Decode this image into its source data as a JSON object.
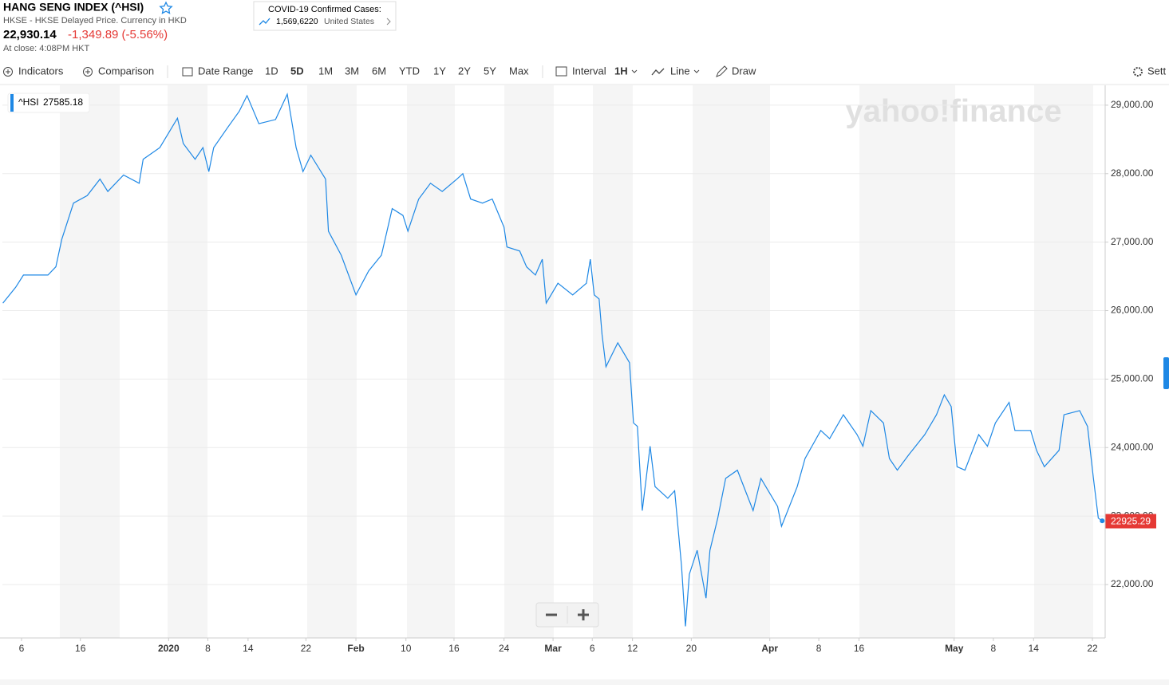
{
  "header": {
    "title": "HANG SENG INDEX (^HSI)",
    "exchange": "HKSE - HKSE Delayed Price. Currency in HKD",
    "price": "22,930.14",
    "change": "-1,349.89 (-5.56%)",
    "close_time": "At close: 4:08PM HKT"
  },
  "covid": {
    "label": "COVID-19 Confirmed Cases:",
    "count": "1,569,6220",
    "region": "United States"
  },
  "toolbar": {
    "indicators": "Indicators",
    "comparison": "Comparison",
    "date_range": "Date Range",
    "ranges": [
      "1D",
      "5D",
      "1M",
      "3M",
      "6M",
      "YTD",
      "1Y",
      "2Y",
      "5Y",
      "Max"
    ],
    "active_range": 1,
    "interval_label": "Interval",
    "interval": "1H",
    "chart_style": "Line",
    "draw": "Draw",
    "settings": "Sett"
  },
  "chart_data": {
    "type": "line",
    "watermark": "yahoo!finance",
    "x": [
      -1.9,
      -0.6,
      0.2,
      2.7,
      3.5,
      4.1,
      5.3,
      6.7,
      8.0,
      8.8,
      10.4,
      12.0,
      12.4,
      14.1,
      15.9,
      16.5,
      17.7,
      18.5,
      19.1,
      19.6,
      21.0,
      22.2,
      23.0,
      24.2,
      25.9,
      27.1,
      28.0,
      28.7,
      29.5,
      31.0,
      31.3,
      32.6,
      34.1,
      35.4,
      36.7,
      37.8,
      38.9,
      39.4,
      40.5,
      41.7,
      42.9,
      44.4,
      45.0,
      45.8,
      47.0,
      48.0,
      49.2,
      49.5,
      50.8,
      51.5,
      52.4,
      53.1,
      53.5,
      54.7,
      56.2,
      57.6,
      58.0,
      58.4,
      58.9,
      59.2,
      59.6,
      60.8,
      62.0,
      62.4,
      62.8,
      63.3,
      64.1,
      64.6,
      65.9,
      66.6,
      67.3,
      67.7,
      68.1,
      68.9,
      69.8,
      70.2,
      71.0,
      71.8,
      73.0,
      74.6,
      75.4,
      77.1,
      77.5,
      79.1,
      79.9,
      81.5,
      82.4,
      83.8,
      85.2,
      85.8,
      86.6,
      87.9,
      88.5,
      89.3,
      90.5,
      92.1,
      93.3,
      94.1,
      94.8,
      95.4,
      96.2,
      97.6,
      98.5,
      99.3,
      100.7,
      101.3,
      102.9,
      103.5,
      104.3,
      105.8,
      106.3,
      107.9,
      108.7,
      109.3,
      109.8,
      110.2
    ],
    "series": [
      {
        "name": "^HSI",
        "color": "#1e88e5",
        "values": [
          26110,
          26340,
          26520,
          26520,
          26640,
          27040,
          27570,
          27680,
          27920,
          27740,
          27980,
          27860,
          28210,
          28380,
          28810,
          28440,
          28210,
          28380,
          28030,
          28380,
          28670,
          28910,
          29140,
          28730,
          28790,
          29160,
          28380,
          28030,
          28270,
          27920,
          27160,
          26810,
          26230,
          26580,
          26810,
          27490,
          27390,
          27160,
          27630,
          27860,
          27740,
          27920,
          28000,
          27630,
          27570,
          27630,
          27220,
          26930,
          26870,
          26640,
          26520,
          26750,
          26110,
          26400,
          26230,
          26400,
          26750,
          26230,
          26170,
          25650,
          25180,
          25530,
          25240,
          24360,
          24310,
          23080,
          24020,
          23430,
          23260,
          23370,
          22270,
          21390,
          22150,
          22500,
          21800,
          22500,
          22970,
          23550,
          23670,
          23080,
          23550,
          23140,
          22850,
          23430,
          23840,
          24250,
          24130,
          24480,
          24190,
          24020,
          24540,
          24360,
          23840,
          23670,
          23900,
          24190,
          24480,
          24770,
          24600,
          23720,
          23670,
          24190,
          24020,
          24360,
          24660,
          24250,
          24250,
          23960,
          23720,
          23960,
          24480,
          24540,
          24310,
          23550,
          22970,
          22930
        ]
      }
    ],
    "crosshair_value": 27585.18,
    "last_price": 22925.29,
    "last_price_color": "#e53935",
    "xlim": [
      -1.95,
      110.5
    ],
    "ylim": [
      21220,
      29290
    ],
    "xticks": [
      {
        "value": 0,
        "label": "6"
      },
      {
        "value": 6,
        "label": "16"
      },
      {
        "value": 15,
        "label": "2020"
      },
      {
        "value": 19,
        "label": "8"
      },
      {
        "value": 23.1,
        "label": "14"
      },
      {
        "value": 29,
        "label": "22"
      },
      {
        "value": 34.1,
        "label": "Feb"
      },
      {
        "value": 39.2,
        "label": "10"
      },
      {
        "value": 44.1,
        "label": "16"
      },
      {
        "value": 49.2,
        "label": "24"
      },
      {
        "value": 54.2,
        "label": "Mar"
      },
      {
        "value": 58.2,
        "label": "6"
      },
      {
        "value": 62.3,
        "label": "12"
      },
      {
        "value": 68.3,
        "label": "20"
      },
      {
        "value": 76.3,
        "label": "Apr"
      },
      {
        "value": 81.3,
        "label": "8"
      },
      {
        "value": 85.4,
        "label": "16"
      },
      {
        "value": 95.1,
        "label": "May"
      },
      {
        "value": 99.1,
        "label": "8"
      },
      {
        "value": 103.2,
        "label": "14"
      },
      {
        "value": 109.2,
        "label": "22"
      }
    ],
    "yticks": [
      {
        "value": 22000,
        "label": "22,000.00"
      },
      {
        "value": 23000,
        "label": "23,000.00"
      },
      {
        "value": 24000,
        "label": "24,000.00"
      },
      {
        "value": 25000,
        "label": "25,000.00"
      },
      {
        "value": 26000,
        "label": "26,000.00"
      },
      {
        "value": 27000,
        "label": "27,000.00"
      },
      {
        "value": 28000,
        "label": "28,000.00"
      },
      {
        "value": 29000,
        "label": "29,000.00"
      }
    ],
    "grid": true
  }
}
